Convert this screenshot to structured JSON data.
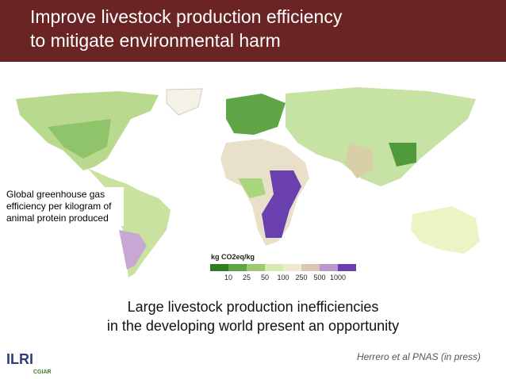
{
  "header": {
    "title_lines": [
      "Improve livestock production efficiency",
      "to mitigate environmental harm"
    ]
  },
  "map": {
    "caption_lines": [
      "Global greenhouse gas",
      "efficiency per kilogram of",
      "animal protein produced"
    ],
    "legend": {
      "title": "kg CO2eq/kg",
      "breaks": [
        10,
        25,
        50,
        100,
        250,
        500,
        1000
      ]
    }
  },
  "subtitle_lines": [
    "Large livestock production inefficiencies",
    "in the developing world present an opportunity"
  ],
  "citation": "Herrero et al PNAS (in press)",
  "logos": [
    "ILRI",
    "CGIAR"
  ]
}
